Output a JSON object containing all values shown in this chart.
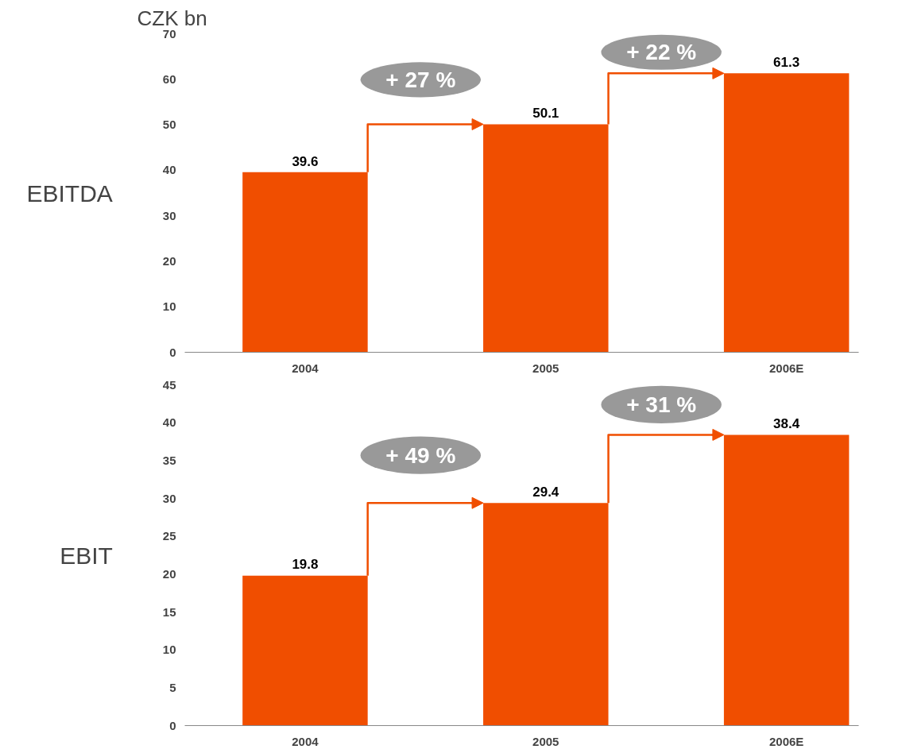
{
  "chart_data": [
    {
      "type": "bar",
      "title": "CZK bn",
      "ylabel": "EBITDA",
      "categories": [
        "2004",
        "2005",
        "2006E"
      ],
      "values": [
        39.6,
        50.1,
        61.3
      ],
      "colors": [
        "#f04e00",
        "#f04e00",
        "#f04e00"
      ],
      "ylim": [
        0,
        70
      ],
      "yticks": [
        0,
        10,
        20,
        30,
        40,
        50,
        60,
        70
      ],
      "data_labels": true,
      "grid": false,
      "annotations": [
        "+ 27 %",
        "+ 22 %"
      ]
    },
    {
      "type": "bar",
      "ylabel": "EBIT",
      "categories": [
        "2004",
        "2005",
        "2006E"
      ],
      "values": [
        19.8,
        29.4,
        38.4
      ],
      "colors": [
        "#f04e00",
        "#f04e00",
        "#f04e00"
      ],
      "ylim": [
        0,
        45
      ],
      "yticks": [
        0,
        5,
        10,
        15,
        20,
        25,
        30,
        35,
        40,
        45
      ],
      "data_labels": true,
      "grid": false,
      "annotations": [
        "+ 49 %",
        "+ 31 %"
      ]
    }
  ]
}
